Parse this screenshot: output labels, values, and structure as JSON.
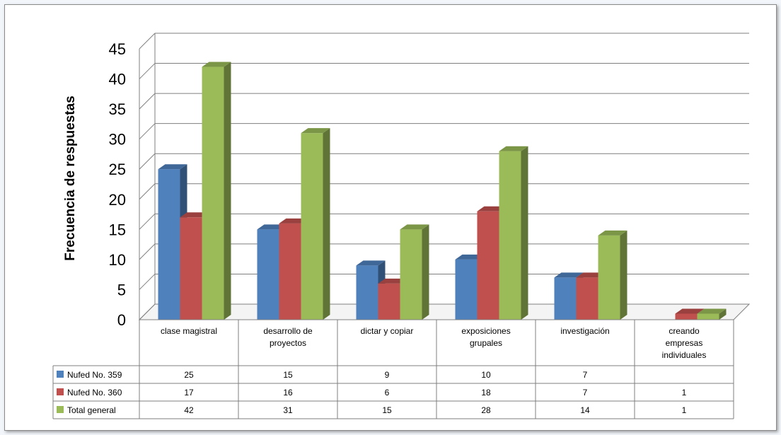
{
  "chart_data": {
    "type": "bar",
    "title": "",
    "xlabel": "",
    "ylabel": "Frecuencia de respuestas",
    "ylim": [
      0,
      45
    ],
    "yticks": [
      "0",
      "5",
      "10",
      "15",
      "20",
      "25",
      "30",
      "35",
      "40",
      "45"
    ],
    "grid": true,
    "legend": "table-below",
    "categories": [
      [
        "clase magistral"
      ],
      [
        "desarrollo de",
        "proyectos"
      ],
      [
        "dictar y copiar"
      ],
      [
        "exposiciones",
        "grupales"
      ],
      [
        "investigación"
      ],
      [
        "creando",
        "empresas",
        "individuales"
      ]
    ],
    "series": [
      {
        "name": "Nufed No. 359",
        "color": "#4f81bd",
        "values": [
          25,
          15,
          9,
          10,
          7,
          null
        ],
        "labels": [
          "25",
          "15",
          "9",
          "10",
          "7",
          ""
        ]
      },
      {
        "name": "Nufed No. 360",
        "color": "#c0504d",
        "values": [
          17,
          16,
          6,
          18,
          7,
          1
        ],
        "labels": [
          "17",
          "16",
          "6",
          "18",
          "7",
          "1"
        ]
      },
      {
        "name": "Total general",
        "color": "#9bbb59",
        "values": [
          42,
          31,
          15,
          28,
          14,
          1
        ],
        "labels": [
          "42",
          "31",
          "15",
          "28",
          "14",
          "1"
        ]
      }
    ]
  }
}
